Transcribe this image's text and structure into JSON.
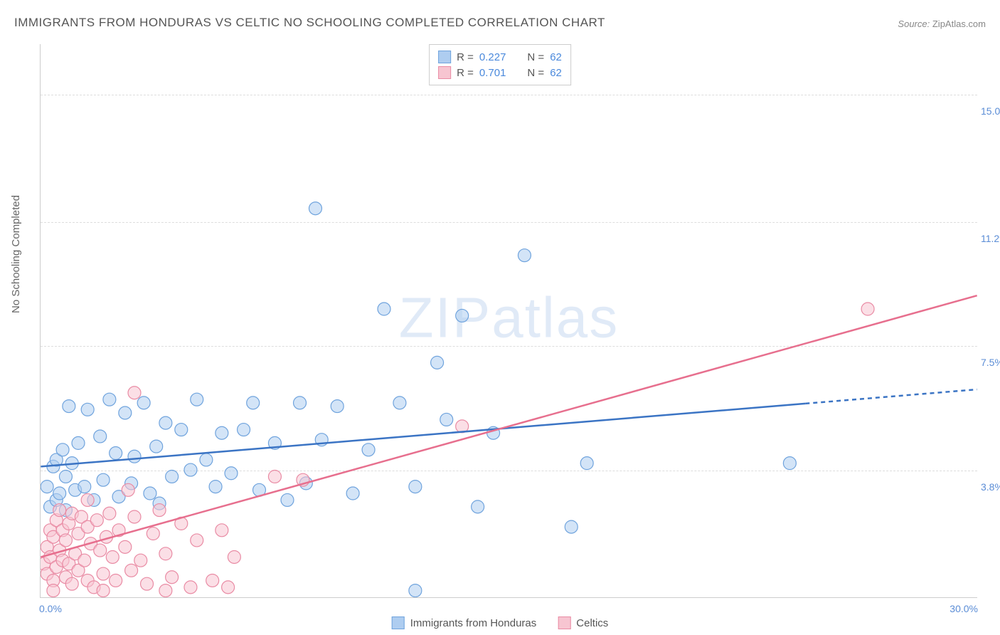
{
  "title": "IMMIGRANTS FROM HONDURAS VS CELTIC NO SCHOOLING COMPLETED CORRELATION CHART",
  "source": {
    "label": "Source:",
    "site": "ZipAtlas.com"
  },
  "ylabel": "No Schooling Completed",
  "watermark": {
    "left": "ZIP",
    "right": "atlas"
  },
  "chart": {
    "type": "scatter",
    "xlim": [
      0,
      30
    ],
    "ylim": [
      0,
      16.5
    ],
    "xticks": [
      {
        "value": 0,
        "label": "0.0%"
      },
      {
        "value": 30,
        "label": "30.0%"
      }
    ],
    "yticks": [
      {
        "value": 15.0,
        "label": "15.0%"
      },
      {
        "value": 11.2,
        "label": "11.2%"
      },
      {
        "value": 7.5,
        "label": "7.5%"
      },
      {
        "value": 3.8,
        "label": "3.8%"
      }
    ],
    "grid_color": "#dddddd",
    "axis_color": "#cccccc",
    "background_color": "#ffffff",
    "marker_radius": 9,
    "marker_opacity": 0.55,
    "line_width": 2.5,
    "series": [
      {
        "name": "Immigrants from Honduras",
        "fill": "#aecdf0",
        "stroke": "#6fa3dd",
        "line_color": "#3b74c4",
        "r": 0.227,
        "n": 62,
        "trend": {
          "x1": 0,
          "y1": 3.9,
          "x2": 30,
          "y2": 6.2,
          "dash_from_x": 24.5
        },
        "points": [
          [
            0.2,
            3.3
          ],
          [
            0.3,
            2.7
          ],
          [
            0.4,
            3.9
          ],
          [
            0.5,
            4.1
          ],
          [
            0.5,
            2.9
          ],
          [
            0.6,
            3.1
          ],
          [
            0.7,
            4.4
          ],
          [
            0.8,
            3.6
          ],
          [
            0.8,
            2.6
          ],
          [
            0.9,
            5.7
          ],
          [
            1.0,
            4.0
          ],
          [
            1.1,
            3.2
          ],
          [
            1.2,
            4.6
          ],
          [
            1.4,
            3.3
          ],
          [
            1.5,
            5.6
          ],
          [
            1.7,
            2.9
          ],
          [
            1.9,
            4.8
          ],
          [
            2.0,
            3.5
          ],
          [
            2.2,
            5.9
          ],
          [
            2.4,
            4.3
          ],
          [
            2.5,
            3.0
          ],
          [
            2.7,
            5.5
          ],
          [
            2.9,
            3.4
          ],
          [
            3.0,
            4.2
          ],
          [
            3.3,
            5.8
          ],
          [
            3.5,
            3.1
          ],
          [
            3.7,
            4.5
          ],
          [
            3.8,
            2.8
          ],
          [
            4.0,
            5.2
          ],
          [
            4.2,
            3.6
          ],
          [
            4.5,
            5.0
          ],
          [
            4.8,
            3.8
          ],
          [
            5.0,
            5.9
          ],
          [
            5.3,
            4.1
          ],
          [
            5.6,
            3.3
          ],
          [
            5.8,
            4.9
          ],
          [
            6.1,
            3.7
          ],
          [
            6.5,
            5.0
          ],
          [
            6.8,
            5.8
          ],
          [
            7.0,
            3.2
          ],
          [
            7.5,
            4.6
          ],
          [
            7.9,
            2.9
          ],
          [
            8.3,
            5.8
          ],
          [
            8.5,
            3.4
          ],
          [
            8.8,
            11.6
          ],
          [
            9.0,
            4.7
          ],
          [
            9.5,
            5.7
          ],
          [
            10.0,
            3.1
          ],
          [
            10.5,
            4.4
          ],
          [
            11.0,
            8.6
          ],
          [
            11.5,
            5.8
          ],
          [
            12.0,
            3.3
          ],
          [
            12.7,
            7.0
          ],
          [
            13.0,
            5.3
          ],
          [
            13.5,
            8.4
          ],
          [
            14.0,
            2.7
          ],
          [
            14.5,
            4.9
          ],
          [
            15.5,
            10.2
          ],
          [
            17.0,
            2.1
          ],
          [
            17.5,
            4.0
          ],
          [
            24.0,
            4.0
          ],
          [
            12.0,
            0.2
          ]
        ]
      },
      {
        "name": "Celtics",
        "fill": "#f7c5d1",
        "stroke": "#e98ba4",
        "line_color": "#e76f8e",
        "r": 0.701,
        "n": 62,
        "trend": {
          "x1": 0,
          "y1": 1.2,
          "x2": 30,
          "y2": 9.0,
          "dash_from_x": null
        },
        "points": [
          [
            0.1,
            1.0
          ],
          [
            0.2,
            1.5
          ],
          [
            0.2,
            0.7
          ],
          [
            0.3,
            2.0
          ],
          [
            0.3,
            1.2
          ],
          [
            0.4,
            0.5
          ],
          [
            0.4,
            1.8
          ],
          [
            0.5,
            2.3
          ],
          [
            0.5,
            0.9
          ],
          [
            0.6,
            1.4
          ],
          [
            0.6,
            2.6
          ],
          [
            0.7,
            1.1
          ],
          [
            0.7,
            2.0
          ],
          [
            0.8,
            0.6
          ],
          [
            0.8,
            1.7
          ],
          [
            0.9,
            2.2
          ],
          [
            0.9,
            1.0
          ],
          [
            1.0,
            0.4
          ],
          [
            1.0,
            2.5
          ],
          [
            1.1,
            1.3
          ],
          [
            1.2,
            0.8
          ],
          [
            1.2,
            1.9
          ],
          [
            1.3,
            2.4
          ],
          [
            1.4,
            1.1
          ],
          [
            1.5,
            0.5
          ],
          [
            1.5,
            2.1
          ],
          [
            1.6,
            1.6
          ],
          [
            1.7,
            0.3
          ],
          [
            1.8,
            2.3
          ],
          [
            1.9,
            1.4
          ],
          [
            2.0,
            0.7
          ],
          [
            2.1,
            1.8
          ],
          [
            2.2,
            2.5
          ],
          [
            2.3,
            1.2
          ],
          [
            2.4,
            0.5
          ],
          [
            2.5,
            2.0
          ],
          [
            2.7,
            1.5
          ],
          [
            2.9,
            0.8
          ],
          [
            3.0,
            2.4
          ],
          [
            3.2,
            1.1
          ],
          [
            3.4,
            0.4
          ],
          [
            3.6,
            1.9
          ],
          [
            3.8,
            2.6
          ],
          [
            4.0,
            1.3
          ],
          [
            4.2,
            0.6
          ],
          [
            4.5,
            2.2
          ],
          [
            4.8,
            0.3
          ],
          [
            5.0,
            1.7
          ],
          [
            5.5,
            0.5
          ],
          [
            5.8,
            2.0
          ],
          [
            6.0,
            0.3
          ],
          [
            6.2,
            1.2
          ],
          [
            3.0,
            6.1
          ],
          [
            7.5,
            3.6
          ],
          [
            8.4,
            3.5
          ],
          [
            4.0,
            0.2
          ],
          [
            1.5,
            2.9
          ],
          [
            2.8,
            3.2
          ],
          [
            13.5,
            5.1
          ],
          [
            26.5,
            8.6
          ],
          [
            2.0,
            0.2
          ],
          [
            0.4,
            0.2
          ]
        ]
      }
    ]
  },
  "legend_top": [
    {
      "swatch_fill": "#aecdf0",
      "swatch_stroke": "#6fa3dd",
      "r_label": "R =",
      "r_value": "0.227",
      "n_label": "N =",
      "n_value": "62"
    },
    {
      "swatch_fill": "#f7c5d1",
      "swatch_stroke": "#e98ba4",
      "r_label": "R =",
      "r_value": "0.701",
      "n_label": "N =",
      "n_value": "62"
    }
  ],
  "legend_bottom": [
    {
      "swatch_fill": "#aecdf0",
      "swatch_stroke": "#6fa3dd",
      "label": "Immigrants from Honduras"
    },
    {
      "swatch_fill": "#f7c5d1",
      "swatch_stroke": "#e98ba4",
      "label": "Celtics"
    }
  ]
}
